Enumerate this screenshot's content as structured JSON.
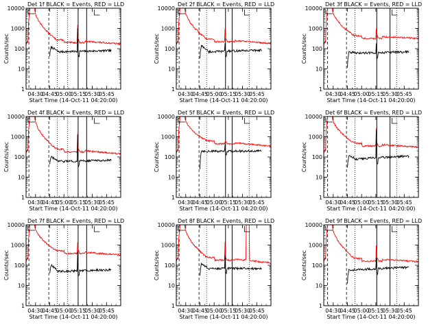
{
  "chart_data": {
    "type": "line",
    "panel_title_suffix": "BLACK = Events, RED = LLD",
    "xlabel": "Start Time (14-Oct-11 04:20:00)",
    "ylabel": "Counts/sec",
    "ylog": true,
    "ylim": [
      1,
      10000
    ],
    "ytick_labels": [
      "1",
      "10",
      "100",
      "1000",
      "10000"
    ],
    "ytick_values": [
      1,
      10,
      100,
      1000,
      10000
    ],
    "xlim_min": [
      0,
      100
    ],
    "xtick_labels": [
      "04:30",
      "04:45",
      "05:00",
      "05:15",
      "05:30",
      "05:45"
    ],
    "xtick_values": [
      10,
      25,
      40,
      55,
      70,
      85
    ],
    "grid": false,
    "legend_marker": "panel-corner-tick",
    "series_colors": {
      "events": "#000000",
      "lld": "#ff0000"
    },
    "panels": [
      {
        "detector": "Det 1f",
        "solid_vlines": [
          55,
          64
        ],
        "dashed_vlines": [
          3,
          24
        ],
        "dotted_vlines": [
          33,
          44
        ],
        "events": {
          "x_start": 25,
          "start": 45,
          "jump": 120,
          "mid": 70,
          "spike": 1200,
          "end": 80
        },
        "lld": {
          "plateau": 10000,
          "late": 200,
          "spike": 1500,
          "end": 170
        },
        "extra_spikes": []
      },
      {
        "detector": "Det 2f",
        "solid_vlines": [
          52,
          59
        ],
        "dashed_vlines": [
          3,
          24
        ],
        "dotted_vlines": [
          32,
          77
        ],
        "events": {
          "x_start": 25,
          "start": 35,
          "jump": 140,
          "mid": 70,
          "spike": 200,
          "end": 85
        },
        "lld": {
          "plateau": 10000,
          "late": 220,
          "spike": 1000,
          "end": 180
        },
        "extra_spikes": []
      },
      {
        "detector": "Det 3f",
        "solid_vlines": [
          56,
          70
        ],
        "dashed_vlines": [
          4,
          24
        ],
        "dotted_vlines": [
          33,
          77
        ],
        "events": {
          "x_start": 25,
          "start": 12,
          "jump": 70,
          "mid": 60,
          "spike": 200,
          "end": 70
        },
        "lld": {
          "plateau": 10000,
          "late": 320,
          "spike": 1000,
          "end": 320
        },
        "extra_spikes": []
      },
      {
        "detector": "Det 4f",
        "solid_vlines": [
          55,
          64
        ],
        "dashed_vlines": [
          3,
          24
        ],
        "dotted_vlines": [
          33,
          44
        ],
        "events": {
          "x_start": 25,
          "start": 45,
          "jump": 100,
          "mid": 60,
          "spike": 1200,
          "end": 70
        },
        "lld": {
          "plateau": 10000,
          "late": 180,
          "spike": 1500,
          "end": 140
        },
        "extra_spikes": []
      },
      {
        "detector": "Det 5f",
        "solid_vlines": [
          52,
          59
        ],
        "dashed_vlines": [
          3,
          24
        ],
        "dotted_vlines": [
          32,
          77
        ],
        "events": {
          "x_start": 25,
          "start": 25,
          "jump": 200,
          "mid": 190,
          "spike": 400,
          "end": 200
        },
        "lld": {
          "plateau": 10000,
          "late": 450,
          "spike": 600,
          "end": 330
        },
        "extra_spikes": []
      },
      {
        "detector": "Det 6f",
        "solid_vlines": [
          56,
          70
        ],
        "dashed_vlines": [
          4,
          24
        ],
        "dotted_vlines": [
          33,
          77
        ],
        "events": {
          "x_start": 25,
          "start": 30,
          "jump": 120,
          "mid": 80,
          "spike": 2000,
          "end": 110
        },
        "lld": {
          "plateau": 10000,
          "late": 350,
          "spike": 2500,
          "end": 300
        },
        "extra_spikes": []
      },
      {
        "detector": "Det 7f",
        "solid_vlines": [
          55,
          64
        ],
        "dashed_vlines": [
          3,
          24
        ],
        "dotted_vlines": [
          33,
          44
        ],
        "events": {
          "x_start": 25,
          "start": 40,
          "jump": 100,
          "mid": 50,
          "spike": 500,
          "end": 60
        },
        "lld": {
          "plateau": 10000,
          "late": 380,
          "spike": 1500,
          "end": 320
        },
        "extra_spikes": []
      },
      {
        "detector": "Det 8f",
        "solid_vlines": [
          52,
          59
        ],
        "dashed_vlines": [
          3,
          24
        ],
        "dotted_vlines": [
          32,
          77
        ],
        "events": {
          "x_start": 25,
          "start": 30,
          "jump": 120,
          "mid": 70,
          "spike": 300,
          "end": 70
        },
        "lld": {
          "plateau": 10000,
          "late": 180,
          "spike": 1300,
          "end": 130
        },
        "extra_spikes": [
          {
            "x_start": 74,
            "x_end": 77,
            "value": 10000
          }
        ]
      },
      {
        "detector": "Det 9f",
        "solid_vlines": [
          56,
          70
        ],
        "dashed_vlines": [
          4,
          24
        ],
        "dotted_vlines": [
          33,
          77
        ],
        "events": {
          "x_start": 25,
          "start": 12,
          "jump": 60,
          "mid": 60,
          "spike": 250,
          "end": 80
        },
        "lld": {
          "plateau": 10000,
          "late": 160,
          "spike": 1000,
          "end": 150
        },
        "extra_spikes": []
      }
    ]
  }
}
